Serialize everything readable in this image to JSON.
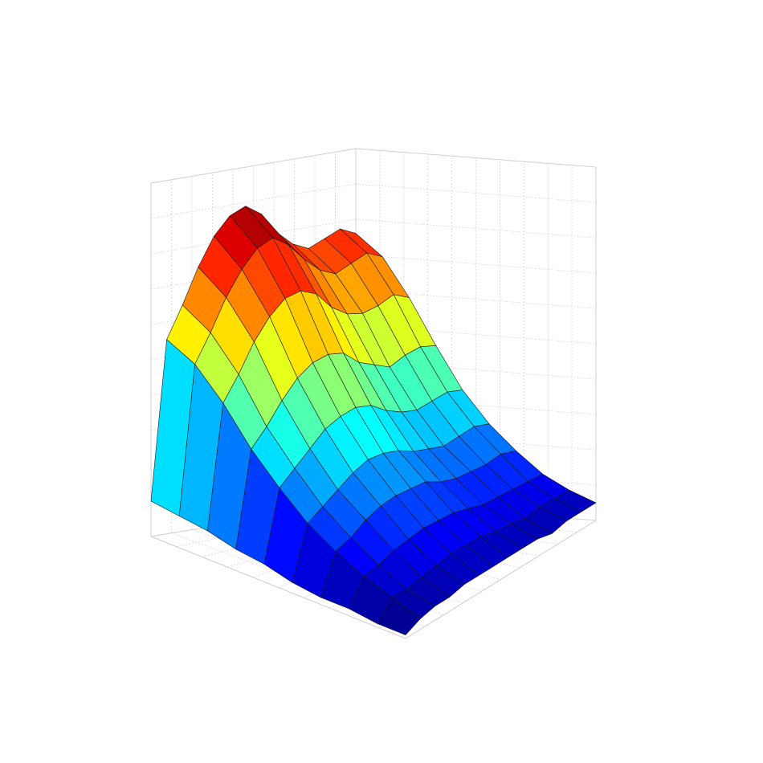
{
  "chart_data": {
    "type": "surface",
    "title": "",
    "xlabel": "",
    "ylabel": "",
    "zlabel": "",
    "colormap": "jet",
    "grid": true,
    "zlim": [
      0,
      1
    ],
    "edge_color": "#1a1a1a",
    "z": [
      [
        0.1,
        0.55,
        0.64,
        0.74,
        0.82,
        0.87,
        0.89,
        0.86,
        0.8,
        0.76,
        0.74,
        0.76,
        0.78,
        0.76
      ],
      [
        0.09,
        0.51,
        0.59,
        0.68,
        0.75,
        0.8,
        0.82,
        0.79,
        0.74,
        0.7,
        0.68,
        0.7,
        0.72,
        0.7
      ],
      [
        0.08,
        0.43,
        0.5,
        0.58,
        0.64,
        0.68,
        0.69,
        0.67,
        0.62,
        0.59,
        0.58,
        0.59,
        0.61,
        0.59
      ],
      [
        0.06,
        0.33,
        0.38,
        0.44,
        0.49,
        0.52,
        0.53,
        0.52,
        0.48,
        0.46,
        0.44,
        0.46,
        0.47,
        0.46
      ],
      [
        0.05,
        0.25,
        0.29,
        0.33,
        0.37,
        0.39,
        0.4,
        0.39,
        0.36,
        0.34,
        0.33,
        0.34,
        0.35,
        0.34
      ],
      [
        0.03,
        0.18,
        0.21,
        0.24,
        0.27,
        0.29,
        0.29,
        0.28,
        0.26,
        0.25,
        0.24,
        0.25,
        0.26,
        0.25
      ],
      [
        0.02,
        0.13,
        0.15,
        0.18,
        0.2,
        0.21,
        0.21,
        0.21,
        0.19,
        0.18,
        0.18,
        0.18,
        0.19,
        0.18
      ],
      [
        0.02,
        0.09,
        0.1,
        0.12,
        0.13,
        0.14,
        0.14,
        0.14,
        0.13,
        0.12,
        0.12,
        0.12,
        0.12,
        0.12
      ],
      [
        0.01,
        0.06,
        0.06,
        0.07,
        0.08,
        0.09,
        0.09,
        0.09,
        0.08,
        0.08,
        0.07,
        0.08,
        0.08,
        0.08
      ],
      [
        0.01,
        0.03,
        0.04,
        0.04,
        0.05,
        0.05,
        0.05,
        0.05,
        0.05,
        0.05,
        0.04,
        0.05,
        0.05,
        0.05
      ]
    ]
  }
}
